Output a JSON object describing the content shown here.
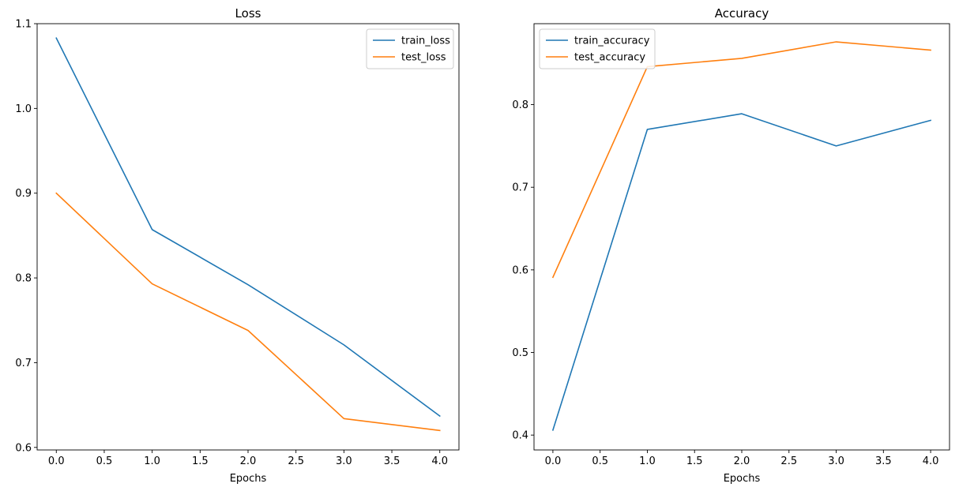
{
  "chart_data": [
    {
      "type": "line",
      "title": "Loss",
      "xlabel": "Epochs",
      "ylabel": "",
      "x": [
        0,
        1,
        2,
        3,
        4
      ],
      "xlim": [
        -0.2,
        4.2
      ],
      "ylim": [
        0.597,
        1.1
      ],
      "xticks": [
        0.0,
        0.5,
        1.0,
        1.5,
        2.0,
        2.5,
        3.0,
        3.5,
        4.0
      ],
      "xtick_labels": [
        "0.0",
        "0.5",
        "1.0",
        "1.5",
        "2.0",
        "2.5",
        "3.0",
        "3.5",
        "4.0"
      ],
      "yticks": [
        0.6,
        0.7,
        0.8,
        0.9,
        1.0,
        1.1
      ],
      "ytick_labels": [
        "0.6",
        "0.7",
        "0.8",
        "0.9",
        "1.0",
        "1.1"
      ],
      "grid": false,
      "legend": "top-right",
      "series": [
        {
          "name": "train_loss",
          "color": "#1f77b4",
          "values": [
            1.083,
            0.857,
            0.792,
            0.721,
            0.637
          ]
        },
        {
          "name": "test_loss",
          "color": "#ff7f0e",
          "values": [
            0.9,
            0.793,
            0.738,
            0.634,
            0.62
          ]
        }
      ]
    },
    {
      "type": "line",
      "title": "Accuracy",
      "xlabel": "Epochs",
      "ylabel": "",
      "x": [
        0,
        1,
        2,
        3,
        4
      ],
      "xlim": [
        -0.2,
        4.2
      ],
      "ylim": [
        0.382,
        0.898
      ],
      "xticks": [
        0.0,
        0.5,
        1.0,
        1.5,
        2.0,
        2.5,
        3.0,
        3.5,
        4.0
      ],
      "xtick_labels": [
        "0.0",
        "0.5",
        "1.0",
        "1.5",
        "2.0",
        "2.5",
        "3.0",
        "3.5",
        "4.0"
      ],
      "yticks": [
        0.4,
        0.5,
        0.6,
        0.7,
        0.8
      ],
      "ytick_labels": [
        "0.4",
        "0.5",
        "0.6",
        "0.7",
        "0.8"
      ],
      "grid": false,
      "legend": "top-left",
      "series": [
        {
          "name": "train_accuracy",
          "color": "#1f77b4",
          "values": [
            0.406,
            0.77,
            0.789,
            0.75,
            0.781
          ]
        },
        {
          "name": "test_accuracy",
          "color": "#ff7f0e",
          "values": [
            0.591,
            0.846,
            0.856,
            0.876,
            0.866
          ]
        }
      ]
    }
  ]
}
